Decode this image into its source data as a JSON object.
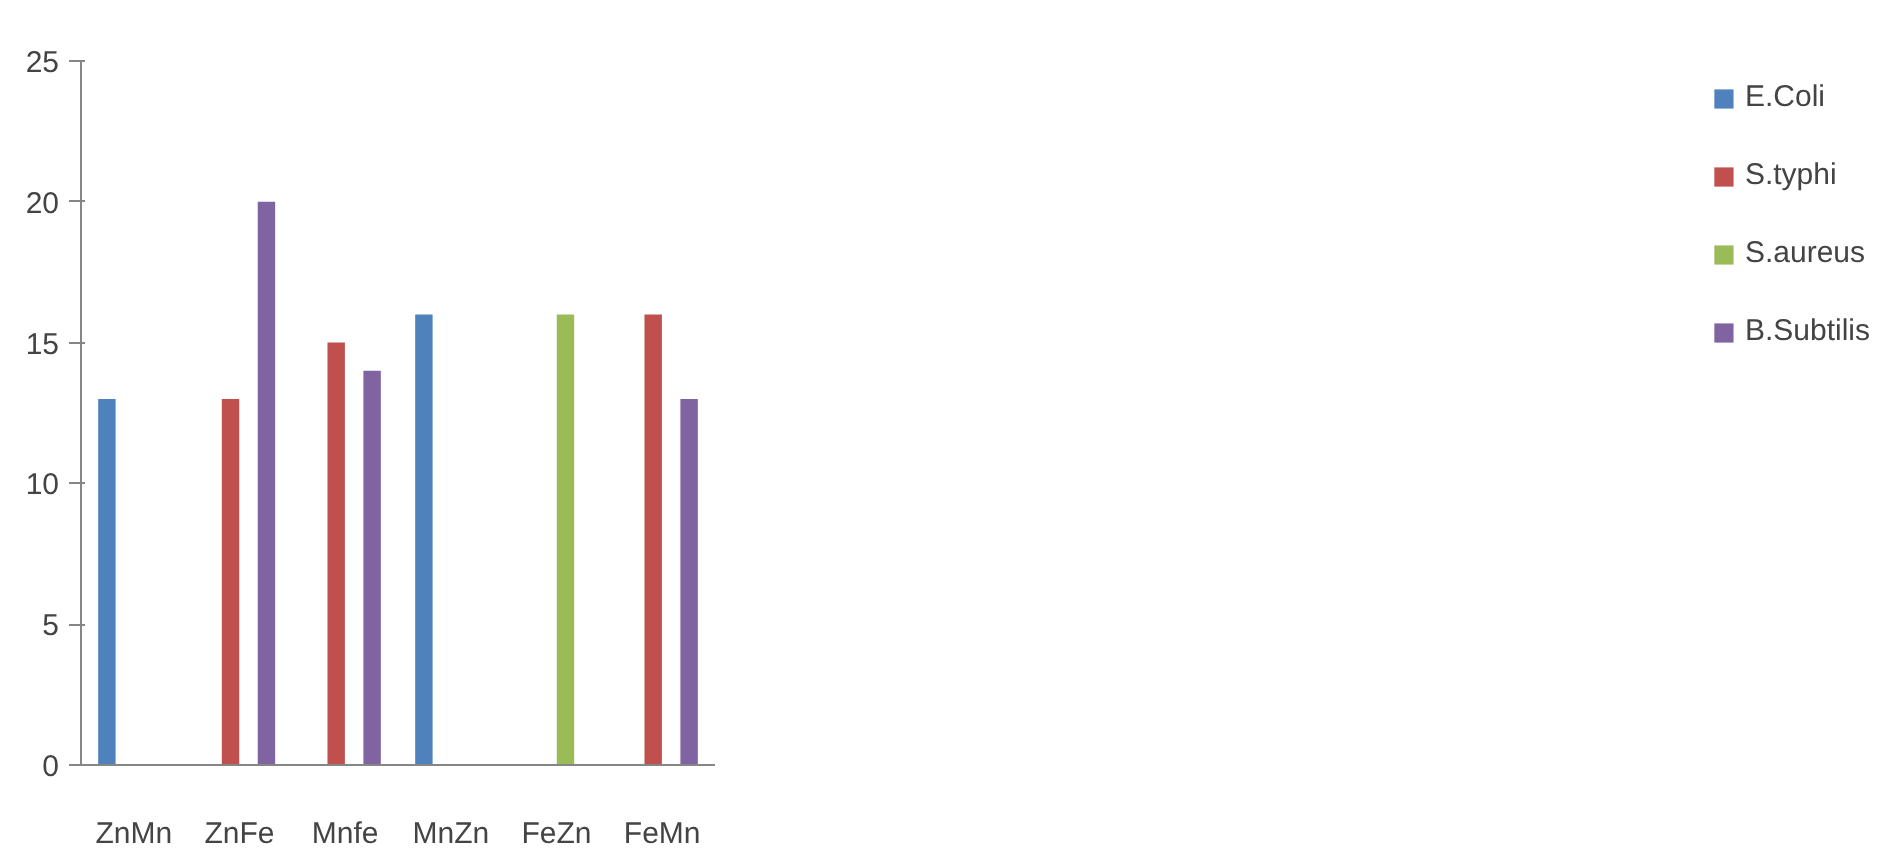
{
  "chart_data": {
    "type": "bar",
    "categories": [
      "ZnMn",
      "ZnFe",
      "Mnfe",
      "MnZn",
      "FeZn",
      "FeMn"
    ],
    "series": [
      {
        "name": "E.Coli",
        "color": "#4f81bd",
        "values": [
          13,
          0,
          0,
          16,
          0,
          0
        ]
      },
      {
        "name": "S.typhi",
        "color": "#c0504d",
        "values": [
          0,
          13,
          15,
          0,
          0,
          16
        ]
      },
      {
        "name": "S.aureus",
        "color": "#9bbb59",
        "values": [
          0,
          0,
          0,
          0,
          16,
          0
        ]
      },
      {
        "name": "B.Subtilis",
        "color": "#8064a2",
        "values": [
          0,
          20,
          14,
          0,
          0,
          13
        ]
      }
    ],
    "ylim": [
      0,
      25
    ],
    "yticks": [
      0,
      5,
      10,
      15,
      20,
      25
    ],
    "grid": false,
    "legend": "right"
  }
}
